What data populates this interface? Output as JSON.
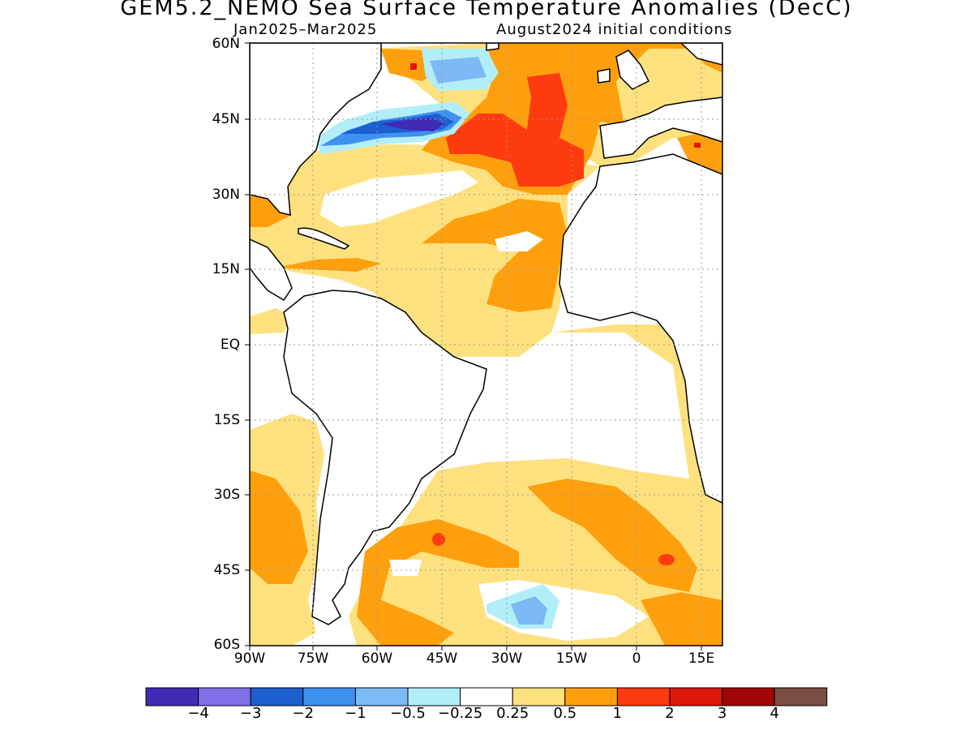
{
  "title": "GEM5.2_NEMO Sea Surface Temperature Anomalies (DecC)",
  "subtitle_left": "Jan2025–Mar2025",
  "subtitle_right": "August2024 initial conditions",
  "lat_labels": [
    "60N",
    "45N",
    "30N",
    "15N",
    "EQ",
    "15S",
    "30S",
    "45S",
    "60S"
  ],
  "lon_labels": [
    "90W",
    "75W",
    "60W",
    "45W",
    "30W",
    "15W",
    "0",
    "15E"
  ],
  "colorbar": {
    "colors": [
      "#3f2bb5",
      "#8070e8",
      "#1e5fd0",
      "#3f91f0",
      "#7db9f5",
      "#b2eef8",
      "#ffffff",
      "#fee17f",
      "#fe9f0d",
      "#fe3b0e",
      "#df160b",
      "#a00606",
      "#7a4e43"
    ],
    "labels": [
      "−4",
      "−3",
      "−2",
      "−1",
      "−0.5",
      "−0.25",
      "0.25",
      "0.5",
      "1",
      "2",
      "3",
      "4"
    ]
  }
}
